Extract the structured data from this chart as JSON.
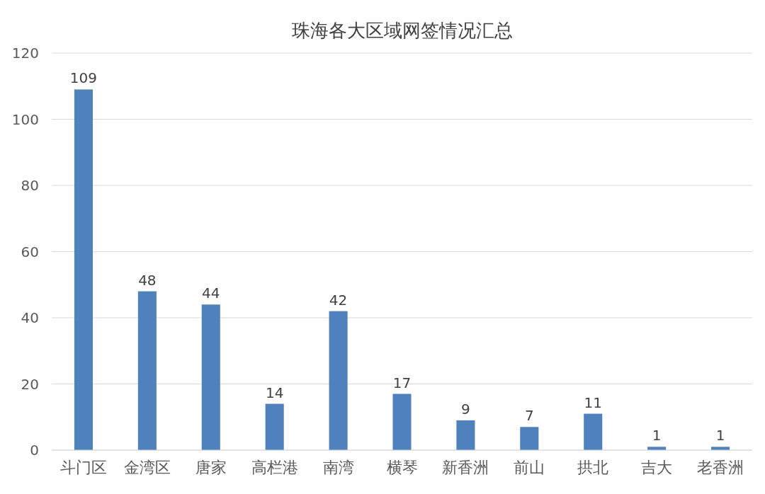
{
  "chart_data": {
    "type": "bar",
    "title": "珠海各大区域网签情况汇总",
    "categories": [
      "斗门区",
      "金湾区",
      "唐家",
      "高栏港",
      "南湾",
      "横琴",
      "新香洲",
      "前山",
      "拱北",
      "吉大",
      "老香洲"
    ],
    "values": [
      109,
      48,
      44,
      14,
      42,
      17,
      9,
      7,
      11,
      1,
      1
    ],
    "color": "#4f81bd",
    "ylim": [
      0,
      120
    ],
    "yticks": [
      0,
      20,
      40,
      60,
      80,
      100,
      120
    ],
    "grid": "y",
    "data_labels": true
  }
}
